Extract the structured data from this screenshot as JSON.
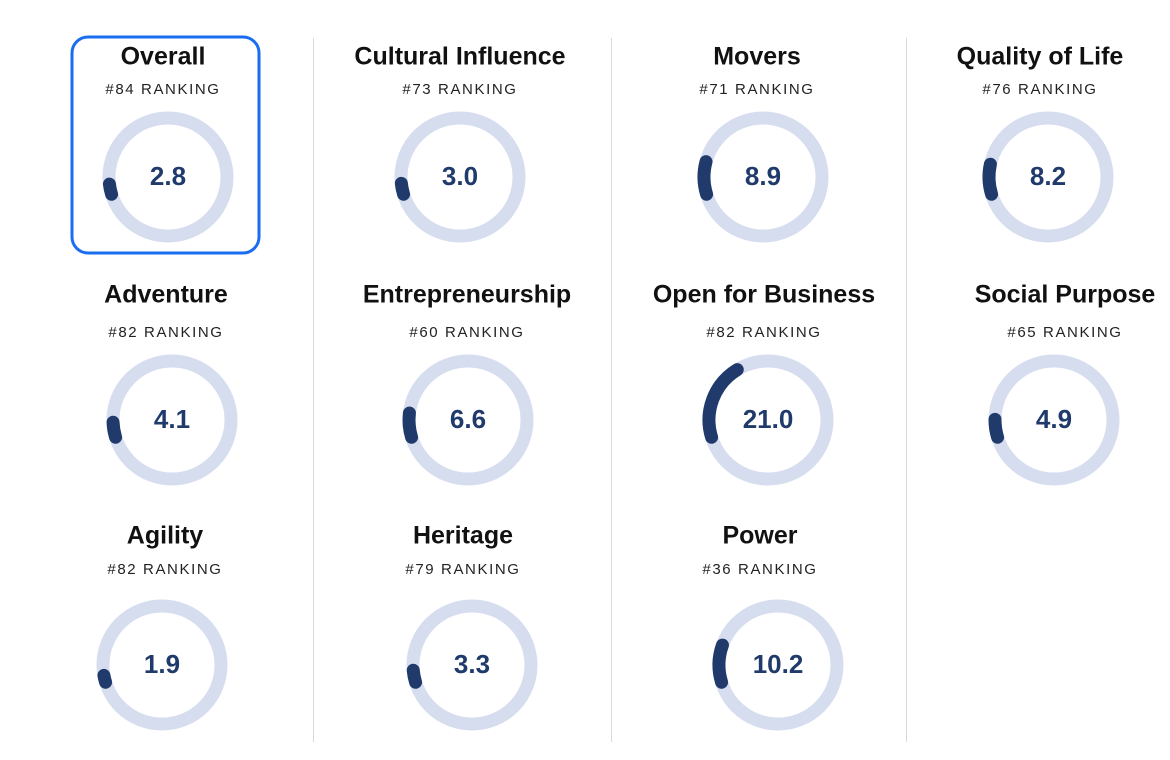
{
  "cards": [
    {
      "title": "Overall",
      "ranking": "#84 RANKING",
      "score": 2.8
    },
    {
      "title": "Cultural Influence",
      "ranking": "#73 RANKING",
      "score": {
        "value": 3.0,
        "label": "3.0"
      }
    },
    {
      "title": "Movers",
      "ranking": "#71 RANKING",
      "score": 8.9
    },
    {
      "title": "Quality of Life",
      "ranking": "#76 RANKING",
      "score": 8.2
    },
    {
      "title": "Adventure",
      "ranking": "#82 RANKING",
      "score": 4.1
    },
    {
      "title": "Entrepreneurship",
      "ranking": "#60 RANKING",
      "score": 6.6
    },
    {
      "title": "Open for Business",
      "ranking": "#82 RANKING",
      "score": {
        "value": 21.0,
        "label": "21.0"
      }
    },
    {
      "title": "Social Purpose",
      "ranking": "#65 RANKING",
      "score": 4.9
    },
    {
      "title": "Agility",
      "ranking": "#82 RANKING",
      "score": 1.9
    },
    {
      "title": "Heritage",
      "ranking": "#79 RANKING",
      "score": 3.3
    },
    {
      "title": "Power",
      "ranking": "#36 RANKING",
      "score": 10.2
    }
  ]
}
